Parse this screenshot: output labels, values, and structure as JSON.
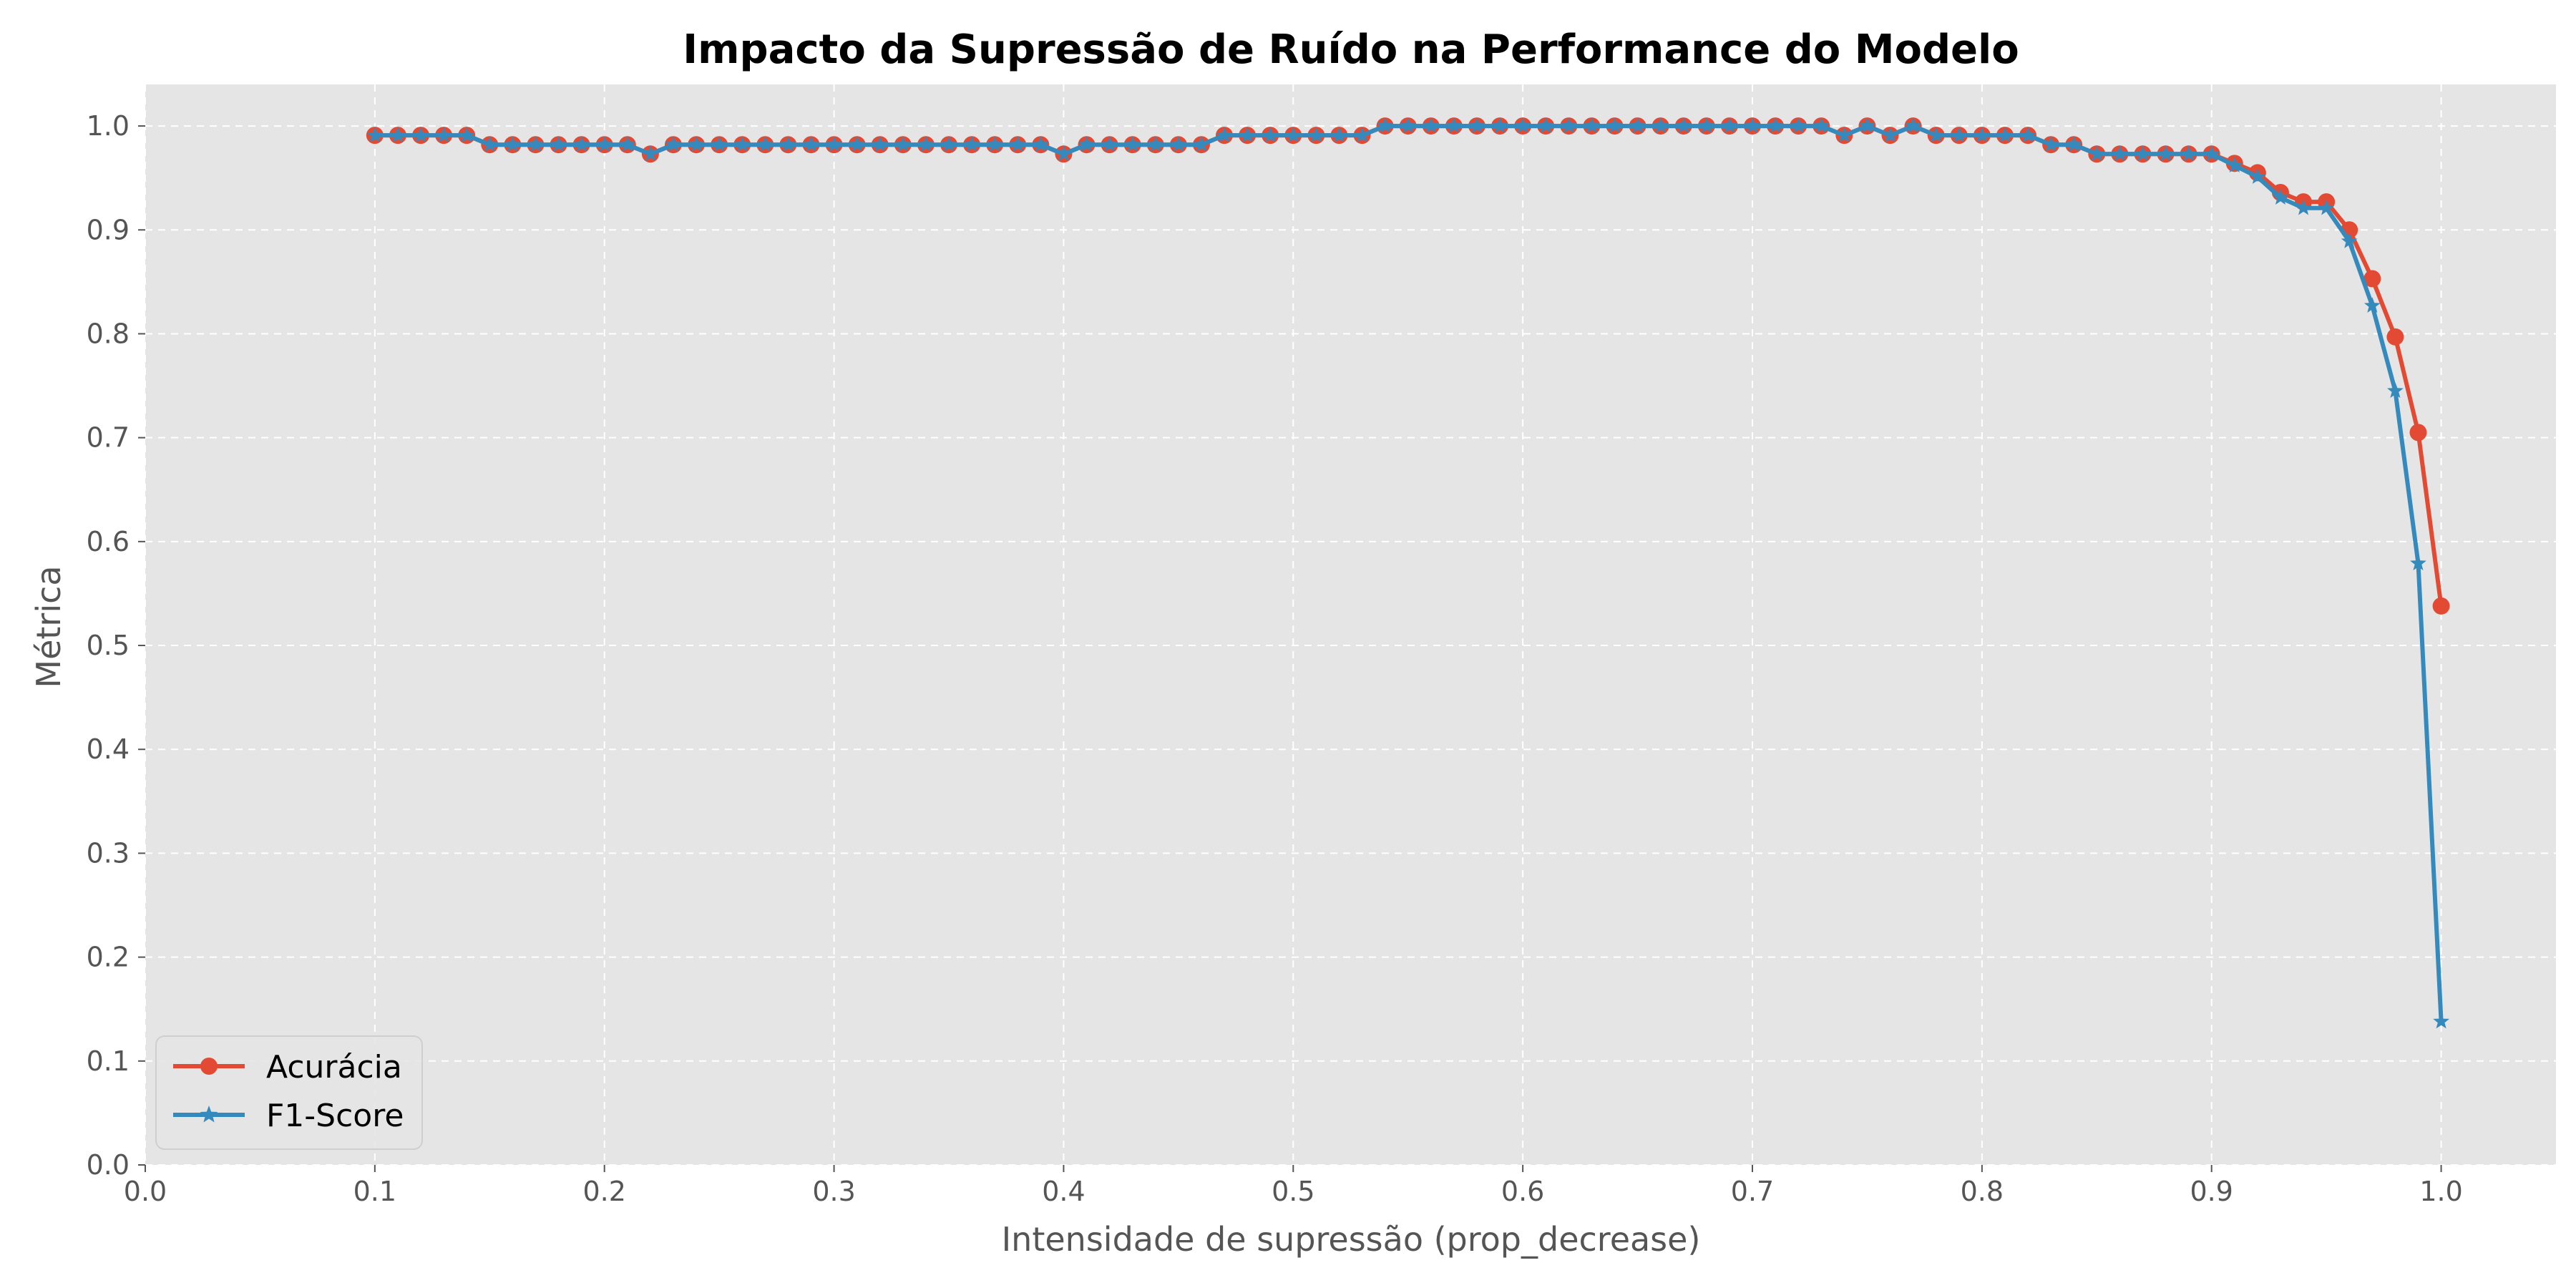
{
  "chart_data": {
    "type": "line",
    "title": "Impacto da Supressão de Ruído na Performance do Modelo",
    "xlabel": "Intensidade de supressão (prop_decrease)",
    "ylabel": "Métrica",
    "xlim": [
      0.0,
      1.05
    ],
    "ylim": [
      0.0,
      1.04
    ],
    "xticks": [
      0.0,
      0.1,
      0.2,
      0.3,
      0.4,
      0.5,
      0.6,
      0.7,
      0.8,
      0.9,
      1.0
    ],
    "xtick_labels": [
      "0.0",
      "0.1",
      "0.2",
      "0.3",
      "0.4",
      "0.5",
      "0.6",
      "0.7",
      "0.8",
      "0.9",
      "1.0"
    ],
    "yticks": [
      0.0,
      0.1,
      0.2,
      0.3,
      0.4,
      0.5,
      0.6,
      0.7,
      0.8,
      0.9,
      1.0
    ],
    "ytick_labels": [
      "0.0",
      "0.1",
      "0.2",
      "0.3",
      "0.4",
      "0.5",
      "0.6",
      "0.7",
      "0.8",
      "0.9",
      "1.0"
    ],
    "grid": true,
    "legend_position": "lower-left",
    "x": [
      0.1,
      0.11,
      0.12,
      0.13,
      0.14,
      0.15,
      0.16,
      0.17,
      0.18,
      0.19,
      0.2,
      0.21,
      0.22,
      0.23,
      0.24,
      0.25,
      0.26,
      0.27,
      0.28,
      0.29,
      0.3,
      0.31,
      0.32,
      0.33,
      0.34,
      0.35,
      0.36,
      0.37,
      0.38,
      0.39,
      0.4,
      0.41,
      0.42,
      0.43,
      0.44,
      0.45,
      0.46,
      0.47,
      0.48,
      0.49,
      0.5,
      0.51,
      0.52,
      0.53,
      0.54,
      0.55,
      0.56,
      0.57,
      0.58,
      0.59,
      0.6,
      0.61,
      0.62,
      0.63,
      0.64,
      0.65,
      0.66,
      0.67,
      0.68,
      0.69,
      0.7,
      0.71,
      0.72,
      0.73,
      0.74,
      0.75,
      0.76,
      0.77,
      0.78,
      0.79,
      0.8,
      0.81,
      0.82,
      0.83,
      0.84,
      0.85,
      0.86,
      0.87,
      0.88,
      0.89,
      0.9,
      0.91,
      0.92,
      0.93,
      0.94,
      0.95,
      0.96,
      0.97,
      0.98,
      0.99,
      1.0
    ],
    "series": [
      {
        "name": "Acurácia",
        "color": "#E24A33",
        "marker": "circle",
        "values": [
          0.991,
          0.991,
          0.991,
          0.991,
          0.991,
          0.982,
          0.982,
          0.982,
          0.982,
          0.982,
          0.982,
          0.982,
          0.973,
          0.982,
          0.982,
          0.982,
          0.982,
          0.982,
          0.982,
          0.982,
          0.982,
          0.982,
          0.982,
          0.982,
          0.982,
          0.982,
          0.982,
          0.982,
          0.982,
          0.982,
          0.973,
          0.982,
          0.982,
          0.982,
          0.982,
          0.982,
          0.982,
          0.991,
          0.991,
          0.991,
          0.991,
          0.991,
          0.991,
          0.991,
          1.0,
          1.0,
          1.0,
          1.0,
          1.0,
          1.0,
          1.0,
          1.0,
          1.0,
          1.0,
          1.0,
          1.0,
          1.0,
          1.0,
          1.0,
          1.0,
          1.0,
          1.0,
          1.0,
          1.0,
          0.991,
          1.0,
          0.991,
          1.0,
          0.991,
          0.991,
          0.991,
          0.991,
          0.991,
          0.982,
          0.982,
          0.973,
          0.973,
          0.973,
          0.973,
          0.973,
          0.973,
          0.964,
          0.955,
          0.936,
          0.927,
          0.927,
          0.9,
          0.853,
          0.797,
          0.705,
          0.538
        ]
      },
      {
        "name": "F1-Score",
        "color": "#348ABD",
        "marker": "star",
        "values": [
          0.991,
          0.991,
          0.991,
          0.991,
          0.991,
          0.982,
          0.982,
          0.982,
          0.982,
          0.982,
          0.982,
          0.982,
          0.973,
          0.982,
          0.982,
          0.982,
          0.982,
          0.982,
          0.982,
          0.982,
          0.982,
          0.982,
          0.982,
          0.982,
          0.982,
          0.982,
          0.982,
          0.982,
          0.982,
          0.982,
          0.973,
          0.982,
          0.982,
          0.982,
          0.982,
          0.982,
          0.982,
          0.991,
          0.991,
          0.991,
          0.991,
          0.991,
          0.991,
          0.991,
          1.0,
          1.0,
          1.0,
          1.0,
          1.0,
          1.0,
          1.0,
          1.0,
          1.0,
          1.0,
          1.0,
          1.0,
          1.0,
          1.0,
          1.0,
          1.0,
          1.0,
          1.0,
          1.0,
          1.0,
          0.991,
          1.0,
          0.991,
          1.0,
          0.991,
          0.991,
          0.991,
          0.991,
          0.991,
          0.982,
          0.982,
          0.973,
          0.973,
          0.973,
          0.973,
          0.973,
          0.973,
          0.962,
          0.951,
          0.931,
          0.921,
          0.921,
          0.889,
          0.827,
          0.745,
          0.579,
          0.138
        ]
      }
    ]
  },
  "colors": {
    "plot_background": "#E5E5E5",
    "grid": "#FFFFFF",
    "text": "#555555"
  }
}
